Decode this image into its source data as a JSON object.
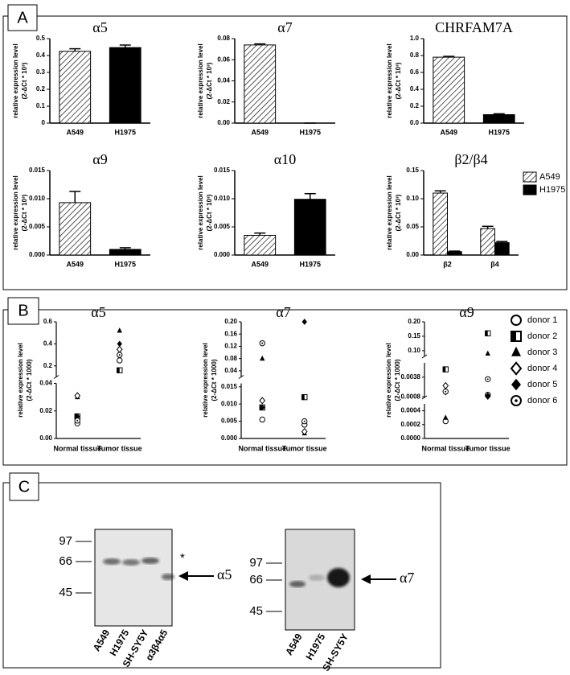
{
  "panel_labels": [
    "A",
    "B",
    "C"
  ],
  "chart_data": [
    {
      "type": "bar",
      "title": "α5",
      "y_label": [
        "relative expression level",
        "(2-ΔCt * 10³)"
      ],
      "categories": [
        "A549",
        "H1975"
      ],
      "values": [
        0.425,
        0.447
      ],
      "errors": [
        0.015,
        0.015
      ],
      "colors": [
        "hatch",
        "#000000"
      ],
      "ylim": [
        0,
        0.5
      ],
      "yticks": [
        0,
        0.1,
        0.2,
        0.3,
        0.4,
        0.5
      ]
    },
    {
      "type": "bar",
      "title": "α7",
      "y_label": [
        "relative expression level",
        "(2-ΔCt * 10³)"
      ],
      "categories": [
        "A549",
        "H1975"
      ],
      "values": [
        0.074,
        0
      ],
      "errors": [
        0.001,
        0
      ],
      "colors": [
        "hatch",
        "#000000"
      ],
      "ylim": [
        0,
        0.08
      ],
      "yticks": [
        {
          "value": 0,
          "label": "0.00"
        },
        0.02,
        0.04,
        0.06,
        0.08
      ]
    },
    {
      "type": "bar",
      "title": "CHRFAM7A",
      "y_label": [
        "relative expression level",
        "(2-ΔCt * 10³)"
      ],
      "categories": [
        "A549",
        "H1975"
      ],
      "values": [
        0.78,
        0.1
      ],
      "errors": [
        0.01,
        0.01
      ],
      "colors": [
        "hatch",
        "#000000"
      ],
      "ylim": [
        0,
        1.0
      ],
      "yticks": [
        {
          "value": 0,
          "label": "0.0"
        },
        0.2,
        0.4,
        0.6,
        0.8,
        {
          "value": 1,
          "label": "1.0"
        }
      ]
    },
    {
      "type": "bar",
      "title": "α9",
      "y_label": [
        "relative expression level",
        "(2-ΔCt * 10³)"
      ],
      "categories": [
        "A549",
        "H1975"
      ],
      "values": [
        0.0093,
        0.001
      ],
      "errors": [
        0.002,
        0.0003
      ],
      "colors": [
        "hatch",
        "#000000"
      ],
      "ylim": [
        0,
        0.015
      ],
      "yticks": [
        {
          "value": 0,
          "label": "0.000"
        },
        0.005,
        {
          "value": 0.01,
          "label": "0.010"
        },
        0.015
      ]
    },
    {
      "type": "bar",
      "title": "α10",
      "y_label": [
        "relative expression level",
        "(2-ΔCt * 10³)"
      ],
      "categories": [
        "A549",
        "H1975"
      ],
      "values": [
        0.0035,
        0.0099
      ],
      "errors": [
        0.0004,
        0.001
      ],
      "colors": [
        "hatch",
        "#000000"
      ],
      "ylim": [
        0,
        0.015
      ],
      "yticks": [
        {
          "value": 0,
          "label": "0.000"
        },
        0.005,
        {
          "value": 0.01,
          "label": "0.010"
        },
        0.015
      ]
    },
    {
      "type": "bar",
      "title": "β2/β4",
      "y_label": [
        "relative expression level",
        "(2-ΔCt * 10³)"
      ],
      "categories": [
        "β2",
        "β4"
      ],
      "series": [
        {
          "name": "A549",
          "color": "hatch",
          "values": [
            0.11,
            0.047
          ],
          "errors": [
            0.004,
            0.004
          ]
        },
        {
          "name": "H1975",
          "color": "#000000",
          "values": [
            0.006,
            0.022
          ],
          "errors": [
            0.001,
            0.002
          ]
        }
      ],
      "ylim": [
        0,
        0.15
      ],
      "yticks": [
        {
          "value": 0,
          "label": "0.00"
        },
        0.05,
        {
          "value": 0.1,
          "label": "0.10"
        },
        0.15
      ],
      "legend": "right"
    },
    {
      "type": "scatter",
      "title": "α5",
      "y_label": [
        "relative expression level",
        "(2-ΔCt * 1000)"
      ],
      "categories": [
        "Normal tissue",
        "Tumor tissue"
      ],
      "y_segments": [
        [
          0,
          0.04
        ],
        [
          0.1,
          0.6
        ]
      ],
      "yticks": [
        {
          "value": 0,
          "label": "0.00"
        },
        0.02,
        0.04,
        0.2,
        0.4,
        0.6
      ],
      "series": [
        {
          "name": "donor 1",
          "marker": "circle-open",
          "values": [
            0.011,
            0.25
          ]
        },
        {
          "name": "donor 2",
          "marker": "square-half",
          "values": [
            0.016,
            0.16
          ]
        },
        {
          "name": "donor 3",
          "marker": "triangle",
          "values": [
            0.03,
            0.52
          ]
        },
        {
          "name": "donor 4",
          "marker": "diamond-open",
          "values": [
            0.031,
            0.35
          ]
        },
        {
          "name": "donor 5",
          "marker": "diamond",
          "values": [
            0.016,
            0.4
          ]
        },
        {
          "name": "donor 6",
          "marker": "circle-dot",
          "values": [
            0.013,
            0.3
          ]
        }
      ],
      "legend": "right"
    },
    {
      "type": "scatter",
      "title": "α7",
      "y_label": [
        "relative expression level",
        "(2-ΔCt * 1000)"
      ],
      "categories": [
        "Normal tissue",
        "Tumor tissue"
      ],
      "y_segments": [
        [
          0,
          0.016
        ],
        [
          0.02,
          0.2
        ]
      ],
      "yticks": [
        {
          "value": 0,
          "label": "0.000"
        },
        0.005,
        {
          "value": 0.01,
          "label": "0.010"
        },
        0.015,
        0.04,
        0.08,
        0.12,
        0.16,
        {
          "value": 0.2,
          "label": "0.20"
        }
      ],
      "series": [
        {
          "name": "donor 1",
          "marker": "circle-open",
          "values": [
            0.0055,
            0.004
          ]
        },
        {
          "name": "donor 2",
          "marker": "square-half",
          "values": [
            0.009,
            0.012
          ]
        },
        {
          "name": "donor 3",
          "marker": "triangle",
          "values": [
            0.08,
            0.0015
          ]
        },
        {
          "name": "donor 4",
          "marker": "diamond-open",
          "values": [
            0.011,
            0.002
          ]
        },
        {
          "name": "donor 5",
          "marker": "diamond",
          "values": [
            0.009,
            0.2
          ]
        },
        {
          "name": "donor 6",
          "marker": "circle-dot",
          "values": [
            0.13,
            0.005
          ]
        }
      ]
    },
    {
      "type": "scatter",
      "title": "α9",
      "y_label": [
        "relative expression level",
        "(2-ΔCt * 1000)"
      ],
      "categories": [
        "Normal tissue",
        "Tumor tissue"
      ],
      "y_segments": [
        [
          0,
          0.0005
        ],
        [
          0.0007,
          0.006
        ],
        [
          0.08,
          0.2
        ]
      ],
      "yticks": [
        {
          "value": 0,
          "label": "0.0000"
        },
        0.0002,
        0.0004,
        0.0008,
        0.0038,
        {
          "value": 0.1,
          "label": "0.10"
        },
        0.15,
        {
          "value": 0.2,
          "label": "0.20"
        }
      ],
      "series": [
        {
          "name": "donor 1",
          "marker": "circle-open",
          "values": [
            0.00025,
            0.0011
          ]
        },
        {
          "name": "donor 2",
          "marker": "square-half",
          "values": [
            0.005,
            0.16
          ]
        },
        {
          "name": "donor 3",
          "marker": "triangle",
          "values": [
            0.0003,
            0.09
          ]
        },
        {
          "name": "donor 4",
          "marker": "diamond-open",
          "values": [
            0.0025,
            0.0009
          ]
        },
        {
          "name": "donor 5",
          "marker": "diamond",
          "values": [
            0.0015,
            0.0009
          ]
        },
        {
          "name": "donor 6",
          "marker": "circle-dot",
          "values": [
            0.0016,
            0.0035
          ]
        }
      ]
    }
  ],
  "blots": [
    {
      "ladder": [
        "97",
        "66",
        "45"
      ],
      "lanes": [
        "A549",
        "H1975",
        "SH-SY5Y",
        "α3β4α5"
      ],
      "asterisk": "*",
      "target": "α5"
    },
    {
      "ladder": [
        "97",
        "66",
        "45"
      ],
      "lanes": [
        "A549",
        "H1975",
        "SH-SY5Y"
      ],
      "target": "α7"
    }
  ]
}
